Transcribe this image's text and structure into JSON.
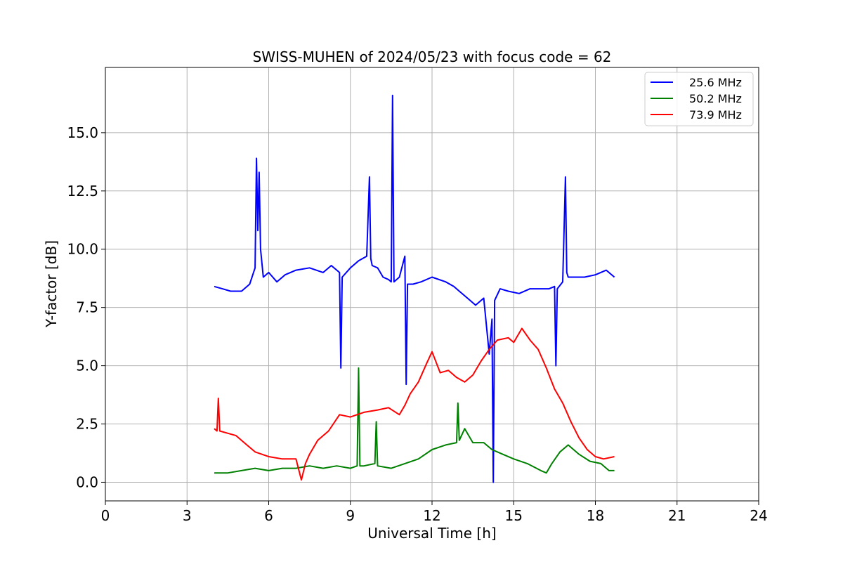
{
  "chart_data": {
    "type": "line",
    "title": "SWISS-MUHEN of 2024/05/23 with focus code = 62",
    "xlabel": "Universal Time [h]",
    "ylabel": "Y-factor [dB]",
    "xlim": [
      0,
      24
    ],
    "ylim": [
      -0.8,
      17.8
    ],
    "xticks": [
      0,
      3,
      6,
      9,
      12,
      15,
      18,
      21,
      24
    ],
    "xtick_labels": [
      "0",
      "3",
      "6",
      "9",
      "12",
      "15",
      "18",
      "21",
      "24"
    ],
    "yticks": [
      0,
      2.5,
      5,
      7.5,
      10,
      12.5,
      15
    ],
    "ytick_labels": [
      "0.0",
      "2.5",
      "5.0",
      "7.5",
      "10.0",
      "12.5",
      "15.0"
    ],
    "grid": true,
    "legend_position": "top-right",
    "series": [
      {
        "name": "25.6 MHz",
        "color": "#0000ff",
        "x": [
          4.0,
          4.3,
          4.6,
          5.0,
          5.3,
          5.5,
          5.55,
          5.6,
          5.65,
          5.7,
          5.8,
          6.0,
          6.3,
          6.6,
          7.0,
          7.5,
          8.0,
          8.3,
          8.6,
          8.65,
          8.7,
          9.0,
          9.3,
          9.6,
          9.7,
          9.75,
          9.8,
          10.0,
          10.2,
          10.4,
          10.5,
          10.55,
          10.6,
          10.8,
          11.0,
          11.05,
          11.1,
          11.3,
          11.6,
          12.0,
          12.5,
          12.8,
          13.0,
          13.3,
          13.6,
          13.9,
          14.1,
          14.2,
          14.25,
          14.3,
          14.5,
          14.8,
          15.2,
          15.6,
          16.0,
          16.3,
          16.5,
          16.55,
          16.6,
          16.8,
          16.9,
          16.95,
          17.0,
          17.3,
          17.6,
          18.0,
          18.4,
          18.7
        ],
        "values": [
          8.4,
          8.3,
          8.2,
          8.2,
          8.5,
          9.2,
          13.9,
          10.8,
          13.3,
          10.0,
          8.8,
          9.0,
          8.6,
          8.9,
          9.1,
          9.2,
          9.0,
          9.3,
          9.0,
          4.9,
          8.8,
          9.2,
          9.5,
          9.7,
          13.1,
          9.6,
          9.3,
          9.2,
          8.8,
          8.7,
          8.6,
          16.6,
          8.6,
          8.8,
          9.7,
          4.2,
          8.5,
          8.5,
          8.6,
          8.8,
          8.6,
          8.4,
          8.2,
          7.9,
          7.6,
          7.9,
          5.5,
          7.0,
          0.0,
          7.8,
          8.3,
          8.2,
          8.1,
          8.3,
          8.3,
          8.3,
          8.4,
          5.0,
          8.3,
          8.6,
          13.1,
          9.0,
          8.8,
          8.8,
          8.8,
          8.9,
          9.1,
          8.8
        ]
      },
      {
        "name": "50.2 MHz",
        "color": "#008000",
        "x": [
          4.0,
          4.5,
          5.0,
          5.5,
          6.0,
          6.5,
          7.0,
          7.5,
          8.0,
          8.5,
          9.0,
          9.25,
          9.3,
          9.35,
          9.5,
          9.9,
          9.95,
          10.0,
          10.5,
          11.0,
          11.5,
          12.0,
          12.5,
          12.9,
          12.95,
          13.0,
          13.2,
          13.5,
          13.9,
          14.2,
          14.6,
          15.0,
          15.5,
          16.0,
          16.2,
          16.4,
          16.7,
          17.0,
          17.4,
          17.8,
          18.2,
          18.5,
          18.7
        ],
        "values": [
          0.4,
          0.4,
          0.5,
          0.6,
          0.5,
          0.6,
          0.6,
          0.7,
          0.6,
          0.7,
          0.6,
          0.7,
          4.9,
          0.7,
          0.7,
          0.8,
          2.6,
          0.7,
          0.6,
          0.8,
          1.0,
          1.4,
          1.6,
          1.7,
          3.4,
          1.8,
          2.3,
          1.7,
          1.7,
          1.4,
          1.2,
          1.0,
          0.8,
          0.5,
          0.4,
          0.8,
          1.3,
          1.6,
          1.2,
          0.9,
          0.8,
          0.5,
          0.5
        ]
      },
      {
        "name": "73.9 MHz",
        "color": "#ff0000",
        "x": [
          4.0,
          4.1,
          4.15,
          4.2,
          4.5,
          4.8,
          5.1,
          5.5,
          6.0,
          6.5,
          7.0,
          7.2,
          7.35,
          7.5,
          7.8,
          8.2,
          8.6,
          9.0,
          9.5,
          10.0,
          10.4,
          10.8,
          11.0,
          11.2,
          11.5,
          11.8,
          12.0,
          12.3,
          12.6,
          12.9,
          13.2,
          13.5,
          13.8,
          14.1,
          14.4,
          14.8,
          15.0,
          15.3,
          15.6,
          15.9,
          16.2,
          16.5,
          16.8,
          17.1,
          17.4,
          17.7,
          18.0,
          18.3,
          18.7
        ],
        "values": [
          2.3,
          2.2,
          3.6,
          2.2,
          2.1,
          2.0,
          1.7,
          1.3,
          1.1,
          1.0,
          1.0,
          0.1,
          0.8,
          1.2,
          1.8,
          2.2,
          2.9,
          2.8,
          3.0,
          3.1,
          3.2,
          2.9,
          3.3,
          3.8,
          4.3,
          5.1,
          5.6,
          4.7,
          4.8,
          4.5,
          4.3,
          4.6,
          5.2,
          5.7,
          6.1,
          6.2,
          6.0,
          6.6,
          6.1,
          5.7,
          4.9,
          4.0,
          3.4,
          2.6,
          1.9,
          1.4,
          1.1,
          1.0,
          1.1
        ]
      }
    ]
  }
}
